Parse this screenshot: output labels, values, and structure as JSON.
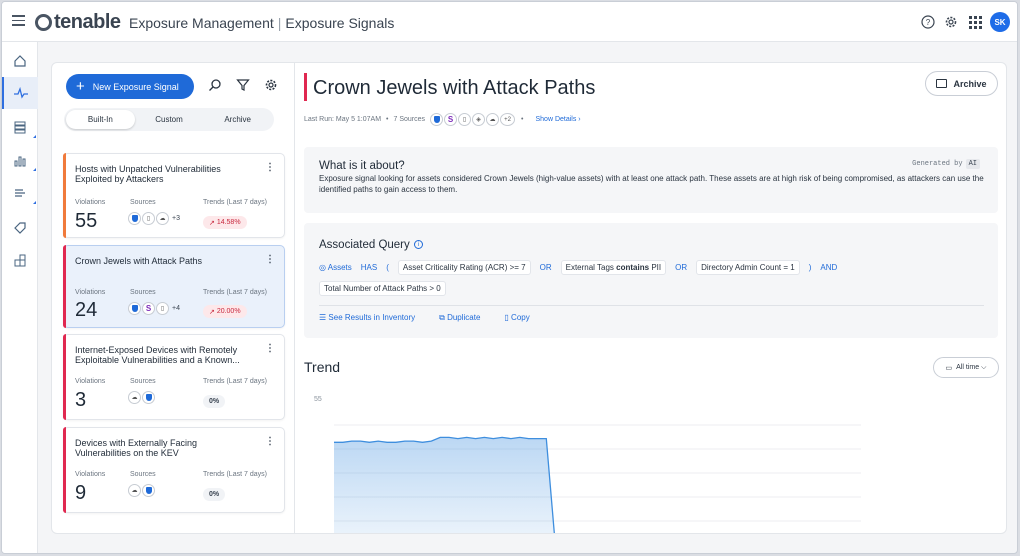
{
  "topbar": {
    "logo": "tenable",
    "app_name": "Exposure Management",
    "section": "Exposure Signals",
    "avatar": "SK",
    "icons": [
      "help-icon",
      "gear-icon",
      "apps-grid-icon"
    ]
  },
  "rail": {
    "items": [
      "home-icon",
      "exposure-signals-icon",
      "inventory-icon",
      "analytics-icon",
      "attack-paths-icon",
      "tags-icon",
      "integrations-icon"
    ]
  },
  "left": {
    "new_button": "New Exposure Signal",
    "tabs": [
      "Built-In",
      "Custom",
      "Archive"
    ],
    "active_tab": "Built-In",
    "labels": {
      "violations": "Violations",
      "sources": "Sources",
      "trends": "Trends (Last 7 days)"
    },
    "cards": [
      {
        "title": "Hosts with Unpatched Vulnerabilities Exploited by Attackers",
        "violations": "55",
        "sources_more": "+3",
        "trend": "14.58%",
        "accent": "#f07a3b",
        "selected": false
      },
      {
        "title": "Crown Jewels with Attack Paths",
        "violations": "24",
        "sources_more": "+4",
        "trend": "20.00%",
        "accent": "#e02850",
        "selected": true
      },
      {
        "title": "Internet-Exposed Devices with Remotely Exploitable Vulnerabilities and a Known...",
        "violations": "3",
        "sources_more": "",
        "trend": "0%",
        "accent": "#e02850",
        "selected": false
      },
      {
        "title": "Devices with Externally Facing Vulnerabilities on the KEV",
        "violations": "9",
        "sources_more": "",
        "trend": "0%",
        "accent": "#e02850",
        "selected": false
      }
    ]
  },
  "detail": {
    "title": "Crown Jewels with Attack Paths",
    "archive": "Archive",
    "last_run": "Last Run: May 5 1:07AM",
    "sources": "7 Sources",
    "sources_more": "+2",
    "show_details": "Show Details",
    "about_heading": "What is it about?",
    "generated_by": "Generated by",
    "ai": "AI",
    "about_text": "Exposure signal looking for assets considered Crown Jewels (high-value assets) with at least one attack path. These assets are at high risk of being compromised, as attackers can use the identified paths to gain access to them.",
    "query_heading": "Associated Query",
    "query": {
      "assets": "Assets",
      "has": "HAS",
      "open_paren": "(",
      "acr": "Asset Criticality Rating (ACR) >= 7",
      "or": "OR",
      "tags_prefix": "External Tags",
      "contains": "contains",
      "tags_value": "PII",
      "admin": "Directory Admin Count = 1",
      "close_paren": ")",
      "and": "AND",
      "paths": "Total Number of Attack Paths > 0"
    },
    "actions": [
      "See Results in Inventory",
      "Duplicate",
      "Copy"
    ],
    "trend_heading": "Trend",
    "time_filter": "All time"
  },
  "chart_data": {
    "type": "area",
    "y_tick": "55",
    "series": [
      {
        "values": [
          48,
          48,
          48.5,
          48.5,
          48,
          48.5,
          48,
          48,
          48.5,
          48.5,
          48,
          48.5,
          50,
          50,
          49.5,
          50,
          49.5,
          50,
          49.5,
          50,
          49.5,
          50,
          49.5,
          49.5,
          49.5,
          7,
          7,
          7.5,
          8,
          8,
          7.5,
          8,
          8,
          7.5,
          8,
          8,
          7.5,
          8,
          8,
          8,
          7.5,
          8,
          8,
          8,
          7.5,
          8,
          8,
          8,
          8,
          8,
          7.5,
          8,
          8,
          8,
          8,
          8,
          8,
          7,
          6,
          9
        ]
      }
    ],
    "color": "#3e8ede"
  }
}
